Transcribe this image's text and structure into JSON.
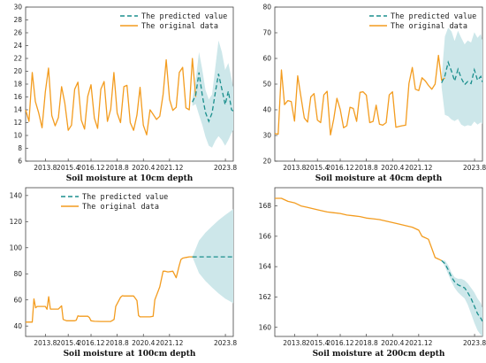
{
  "chart_data": [
    {
      "type": "line",
      "caption": "Soil moisture at 10cm depth",
      "x_ticks": [
        "2013.8",
        "2015.4",
        "2016.12",
        "2018.8",
        "2020.4",
        "2021.12",
        "2023.8"
      ],
      "y_ticks": [
        6,
        8,
        10,
        12,
        14,
        16,
        18,
        20,
        22,
        24,
        26,
        28,
        30
      ],
      "ylim": [
        6,
        30
      ],
      "xlim": [
        0,
        1
      ],
      "legend": {
        "position": "top-right",
        "predicted": "The predicted value",
        "original": "The original data"
      },
      "original_series": {
        "x": [
          0.0,
          0.016,
          0.032,
          0.047,
          0.063,
          0.079,
          0.095,
          0.11,
          0.126,
          0.142,
          0.158,
          0.173,
          0.189,
          0.205,
          0.221,
          0.236,
          0.252,
          0.268,
          0.284,
          0.299,
          0.315,
          0.331,
          0.347,
          0.362,
          0.378,
          0.394,
          0.41,
          0.425,
          0.441,
          0.457,
          0.473,
          0.488,
          0.504,
          0.52,
          0.536,
          0.551,
          0.567,
          0.583,
          0.599,
          0.614,
          0.63,
          0.646,
          0.662,
          0.677,
          0.693,
          0.709,
          0.725,
          0.74,
          0.756,
          0.772,
          0.788,
          0.803,
          0.819
        ],
        "y": [
          14.0,
          12.2,
          19.8,
          15.3,
          13.5,
          11.2,
          16.8,
          20.5,
          13.1,
          11.5,
          12.8,
          17.6,
          15.0,
          10.8,
          11.6,
          17.2,
          18.3,
          12.4,
          11.0,
          16.1,
          17.9,
          12.7,
          11.1,
          17.2,
          18.4,
          12.2,
          14.1,
          19.8,
          13.5,
          12.0,
          17.6,
          17.8,
          12.0,
          10.8,
          13.2,
          17.5,
          11.6,
          10.1,
          14.0,
          13.3,
          12.5,
          13.0,
          16.4,
          21.8,
          15.6,
          13.9,
          14.4,
          19.8,
          20.6,
          14.3,
          14.0,
          22.0,
          16.0
        ]
      },
      "predicted_series": {
        "x": [
          0.803,
          0.819,
          0.835,
          0.851,
          0.866,
          0.882,
          0.898,
          0.914,
          0.929,
          0.945,
          0.961,
          0.976,
          0.992,
          1.0
        ],
        "y": [
          15.2,
          16.3,
          19.8,
          16.2,
          13.6,
          12.2,
          13.5,
          16.8,
          19.6,
          17.2,
          14.8,
          16.9,
          14.0,
          13.8
        ],
        "band_lower": [
          14.6,
          14.9,
          13.2,
          11.6,
          9.8,
          8.4,
          8.1,
          9.2,
          9.9,
          9.3,
          8.4,
          9.3,
          10.4,
          10.8
        ],
        "band_upper": [
          15.8,
          18.6,
          23.0,
          20.2,
          17.1,
          15.6,
          16.4,
          20.8,
          24.8,
          23.0,
          20.2,
          21.3,
          18.8,
          17.5
        ]
      }
    },
    {
      "type": "line",
      "caption": "Soil moisture at 40cm depth",
      "x_ticks": [
        "2013.8",
        "2015.4",
        "2016.12",
        "2018.8",
        "2020.4",
        "2021.12",
        "2023.8"
      ],
      "y_ticks": [
        20,
        30,
        40,
        50,
        60,
        70,
        80
      ],
      "ylim": [
        20,
        80
      ],
      "xlim": [
        0,
        1
      ],
      "legend": {
        "position": "top-right",
        "predicted": "The predicted value",
        "original": "The original data"
      },
      "original_series": {
        "x": [
          0.0,
          0.016,
          0.032,
          0.047,
          0.063,
          0.079,
          0.095,
          0.11,
          0.126,
          0.142,
          0.158,
          0.173,
          0.189,
          0.205,
          0.221,
          0.236,
          0.252,
          0.268,
          0.284,
          0.299,
          0.315,
          0.331,
          0.347,
          0.362,
          0.378,
          0.394,
          0.41,
          0.425,
          0.441,
          0.457,
          0.473,
          0.488,
          0.504,
          0.52,
          0.536,
          0.551,
          0.567,
          0.583,
          0.599,
          0.614,
          0.63,
          0.646,
          0.662,
          0.677,
          0.693,
          0.709,
          0.725,
          0.74,
          0.756,
          0.772,
          0.788,
          0.803,
          0.819
        ],
        "y": [
          30.8,
          30.5,
          55.5,
          42.0,
          43.6,
          43.2,
          35.6,
          53.2,
          45.0,
          36.8,
          35.2,
          45.0,
          46.3,
          36.0,
          35.0,
          45.8,
          47.2,
          30.2,
          36.4,
          44.5,
          40.2,
          33.0,
          33.8,
          41.0,
          40.5,
          35.5,
          46.8,
          47.0,
          45.7,
          35.0,
          35.5,
          41.8,
          34.4,
          34.0,
          35.0,
          45.8,
          47.0,
          33.2,
          33.5,
          33.8,
          34.0,
          50.2,
          56.5,
          48.0,
          47.5,
          52.5,
          51.2,
          49.5,
          48.0,
          50.0,
          61.2,
          51.5,
          52.4
        ]
      },
      "predicted_series": {
        "x": [
          0.803,
          0.819,
          0.835,
          0.851,
          0.866,
          0.882,
          0.898,
          0.914,
          0.929,
          0.945,
          0.961,
          0.976,
          0.992,
          1.0
        ],
        "y": [
          50.5,
          53.2,
          58.5,
          55.0,
          51.2,
          55.8,
          52.3,
          49.8,
          51.0,
          50.2,
          55.6,
          51.5,
          53.0,
          50.8
        ],
        "band_lower": [
          48.9,
          38.0,
          37.5,
          36.2,
          35.6,
          36.4,
          34.2,
          33.5,
          34.0,
          33.7,
          35.4,
          34.2,
          35.1,
          34.6
        ],
        "band_upper": [
          52.2,
          68.6,
          72.0,
          70.5,
          66.8,
          70.8,
          68.0,
          65.5,
          67.0,
          66.2,
          70.2,
          68.0,
          69.5,
          67.2
        ]
      }
    },
    {
      "type": "line",
      "caption": "Soil moisture at 100cm depth",
      "x_ticks": [
        "2013.8",
        "2015.4",
        "2016.12",
        "2018.8",
        "2020.4",
        "2021.12",
        "2023.8"
      ],
      "y_ticks": [
        40,
        60,
        80,
        100,
        120,
        140
      ],
      "ylim": [
        32,
        146
      ],
      "xlim": [
        0,
        1
      ],
      "legend": {
        "position": "top-left",
        "predicted": "The predicted value",
        "original": "The original data"
      },
      "original_series": {
        "x": [
          0.0,
          0.032,
          0.04,
          0.048,
          0.056,
          0.095,
          0.103,
          0.111,
          0.119,
          0.158,
          0.173,
          0.181,
          0.197,
          0.236,
          0.244,
          0.252,
          0.26,
          0.299,
          0.307,
          0.315,
          0.323,
          0.331,
          0.362,
          0.41,
          0.426,
          0.434,
          0.457,
          0.466,
          0.473,
          0.52,
          0.536,
          0.544,
          0.551,
          0.599,
          0.614,
          0.622,
          0.646,
          0.662,
          0.67,
          0.685,
          0.709,
          0.725,
          0.74,
          0.748,
          0.756,
          0.772,
          0.788,
          0.803,
          0.819
        ],
        "y": [
          43.0,
          43.0,
          60.8,
          54.0,
          55.0,
          55.0,
          52.8,
          62.5,
          53.0,
          53.0,
          55.5,
          45.0,
          44.0,
          44.0,
          44.5,
          47.8,
          47.5,
          47.5,
          46.5,
          44.0,
          43.8,
          43.6,
          43.5,
          43.5,
          45.0,
          55.0,
          62.0,
          63.2,
          63.0,
          63.0,
          59.5,
          48.0,
          47.0,
          47.0,
          47.5,
          60.0,
          70.0,
          82.0,
          82.0,
          81.5,
          82.0,
          77.0,
          86.5,
          91.0,
          92.0,
          92.5,
          93.0,
          93.0,
          93.0
        ]
      },
      "predicted_series": {
        "x": [
          0.803,
          0.835,
          0.866,
          0.898,
          0.929,
          0.961,
          1.0
        ],
        "y": [
          93.0,
          93.0,
          93.0,
          93.0,
          93.0,
          93.0,
          93.0
        ],
        "band_lower": [
          93.0,
          80.5,
          74.5,
          69.5,
          65.0,
          61.0,
          57.5
        ],
        "band_upper": [
          93.0,
          105.5,
          111.5,
          116.5,
          121.0,
          125.0,
          129.5
        ]
      }
    },
    {
      "type": "line",
      "caption": "Soil moisture at 200cm depth",
      "x_ticks": [
        "2013.8",
        "2015.4",
        "2016.12",
        "2018.8",
        "2020.4",
        "2021.12",
        "2023.8"
      ],
      "y_ticks": [
        160,
        162,
        164,
        166,
        168
      ],
      "ylim": [
        159.4,
        169.2
      ],
      "xlim": [
        0,
        1
      ],
      "legend": {
        "position": "none",
        "predicted": "",
        "original": ""
      },
      "original_series": {
        "x": [
          0.0,
          0.032,
          0.063,
          0.095,
          0.126,
          0.158,
          0.189,
          0.221,
          0.252,
          0.284,
          0.315,
          0.347,
          0.378,
          0.41,
          0.441,
          0.473,
          0.504,
          0.536,
          0.567,
          0.599,
          0.63,
          0.662,
          0.693,
          0.709,
          0.725,
          0.74,
          0.756,
          0.772,
          0.788,
          0.803
        ],
        "y": [
          168.5,
          168.5,
          168.3,
          168.2,
          168.0,
          167.9,
          167.8,
          167.7,
          167.6,
          167.55,
          167.5,
          167.4,
          167.35,
          167.3,
          167.2,
          167.15,
          167.1,
          167.0,
          166.9,
          166.8,
          166.7,
          166.6,
          166.4,
          166.0,
          165.9,
          165.8,
          165.2,
          164.6,
          164.5,
          164.4
        ]
      },
      "predicted_series": {
        "x": [
          0.803,
          0.819,
          0.835,
          0.851,
          0.866,
          0.882,
          0.898,
          0.914,
          0.929,
          0.945,
          0.961,
          0.976,
          0.992,
          1.0
        ],
        "y": [
          164.4,
          164.2,
          163.8,
          163.3,
          163.0,
          162.8,
          162.7,
          162.6,
          162.3,
          161.9,
          161.4,
          160.9,
          160.6,
          160.4
        ],
        "band_lower": [
          164.4,
          164.0,
          163.5,
          163.0,
          162.6,
          162.3,
          162.1,
          161.9,
          161.5,
          160.9,
          160.3,
          159.8,
          159.5,
          159.4
        ],
        "band_upper": [
          164.4,
          164.4,
          164.1,
          163.6,
          163.3,
          163.2,
          163.2,
          163.1,
          162.9,
          162.6,
          162.3,
          161.9,
          161.6,
          161.3
        ]
      }
    }
  ],
  "colors": {
    "original": "#f39c1f",
    "predicted": "#1b8f8d",
    "band": "#cde7ea",
    "axis": "#444444"
  }
}
